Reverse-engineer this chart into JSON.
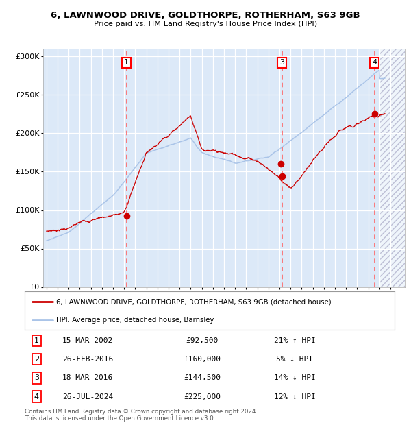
{
  "title": "6, LAWNWOOD DRIVE, GOLDTHORPE, ROTHERHAM, S63 9GB",
  "subtitle": "Price paid vs. HM Land Registry's House Price Index (HPI)",
  "legend_line1": "6, LAWNWOOD DRIVE, GOLDTHORPE, ROTHERHAM, S63 9GB (detached house)",
  "legend_line2": "HPI: Average price, detached house, Barnsley",
  "footer1": "Contains HM Land Registry data © Crown copyright and database right 2024.",
  "footer2": "This data is licensed under the Open Government Licence v3.0.",
  "ylim": [
    0,
    310000
  ],
  "yticks": [
    0,
    50000,
    100000,
    150000,
    200000,
    250000,
    300000
  ],
  "ytick_labels": [
    "£0",
    "£50K",
    "£100K",
    "£150K",
    "£200K",
    "£250K",
    "£300K"
  ],
  "year_start": 1995,
  "year_end": 2027,
  "plot_bg": "#dce9f8",
  "hpi_color": "#aac4e8",
  "price_color": "#cc0000",
  "vline_color": "#ff6666",
  "vlines": [
    2002.21,
    2016.22,
    2024.57
  ],
  "vline_labels": [
    "1",
    "3",
    "4"
  ],
  "sale_points": [
    [
      2002.21,
      92500
    ],
    [
      2016.15,
      160000
    ],
    [
      2016.22,
      144500
    ],
    [
      2024.57,
      225000
    ]
  ],
  "table": [
    {
      "num": "1",
      "date": "15-MAR-2002",
      "price": "£92,500",
      "hpi": "21% ↑ HPI"
    },
    {
      "num": "2",
      "date": "26-FEB-2016",
      "price": "£160,000",
      "hpi": "5% ↓ HPI"
    },
    {
      "num": "3",
      "date": "18-MAR-2016",
      "price": "£144,500",
      "hpi": "14% ↓ HPI"
    },
    {
      "num": "4",
      "date": "26-JUL-2024",
      "price": "£225,000",
      "hpi": "12% ↓ HPI"
    }
  ]
}
